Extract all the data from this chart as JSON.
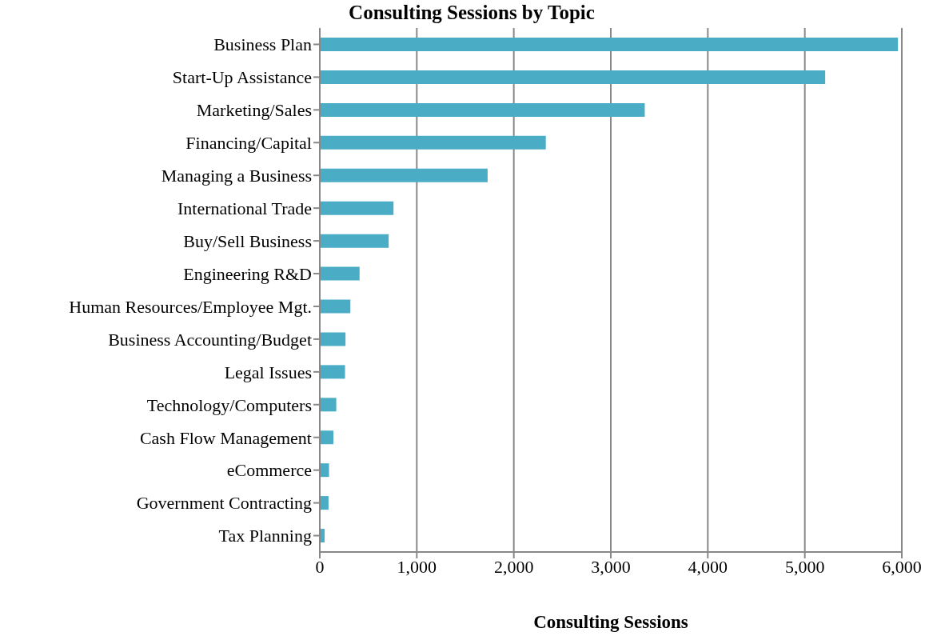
{
  "chart_data": {
    "type": "bar",
    "orientation": "horizontal",
    "title": "Consulting Sessions by Topic",
    "xlabel": "Consulting Sessions",
    "categories": [
      "Business Plan",
      "Start-Up Assistance",
      "Marketing/Sales",
      "Financing/Capital",
      "Managing a Business",
      "International Trade",
      "Buy/Sell Business",
      "Engineering R&D",
      "Human Resources/Employee Mgt.",
      "Business Accounting/Budget",
      "Legal Issues",
      "Technology/Computers",
      "Cash Flow Management",
      "eCommerce",
      "Government Contracting",
      "Tax Planning"
    ],
    "values": [
      5960,
      5210,
      3350,
      2330,
      1730,
      760,
      710,
      410,
      315,
      265,
      260,
      170,
      140,
      95,
      90,
      50
    ],
    "color": "#4bacc6",
    "xlim": [
      0,
      6000
    ],
    "xticks": [
      {
        "value": 0,
        "label": "0"
      },
      {
        "value": 1000,
        "label": "1,000"
      },
      {
        "value": 2000,
        "label": "2,000"
      },
      {
        "value": 3000,
        "label": "3,000"
      },
      {
        "value": 4000,
        "label": "4,000"
      },
      {
        "value": 5000,
        "label": "5,000"
      },
      {
        "value": 6000,
        "label": "6,000"
      }
    ],
    "grid": "x",
    "legend": false
  }
}
